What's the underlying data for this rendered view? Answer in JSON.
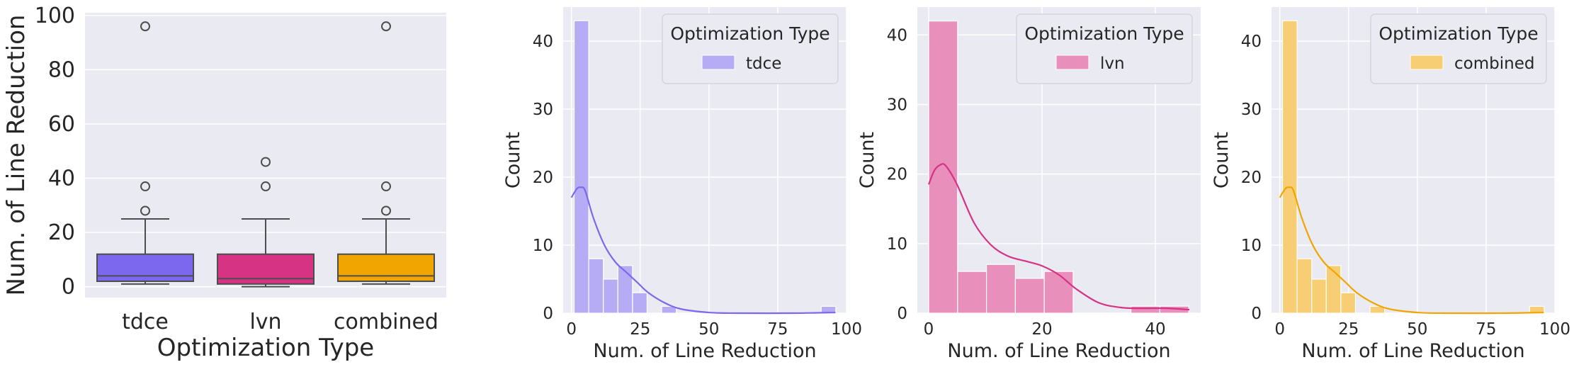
{
  "chart_data": [
    {
      "type": "box",
      "xlabel": "Optimization Type",
      "ylabel": "Num. of Line Reduction",
      "ylim": [
        -4,
        101
      ],
      "yticks": [
        0,
        20,
        40,
        60,
        80,
        100
      ],
      "grid": true,
      "categories": [
        "tdce",
        "lvn",
        "combined"
      ],
      "boxes": [
        {
          "category": "tdce",
          "color": "#7b68ee",
          "whisker_low": 1,
          "q1": 2,
          "median": 4,
          "q3": 12,
          "whisker_high": 25,
          "outliers": [
            28,
            37,
            96
          ]
        },
        {
          "category": "lvn",
          "color": "#d63384",
          "whisker_low": 0,
          "q1": 1,
          "median": 3,
          "q3": 12,
          "whisker_high": 25,
          "outliers": [
            37,
            46
          ]
        },
        {
          "category": "combined",
          "color": "#f0a500",
          "whisker_low": 1,
          "q1": 2,
          "median": 4,
          "q3": 12,
          "whisker_high": 25,
          "outliers": [
            28,
            37,
            96
          ]
        }
      ]
    },
    {
      "type": "histogram",
      "xlabel": "Num. of Line Reduction",
      "ylabel": "Count",
      "xlim": [
        -3,
        100
      ],
      "ylim": [
        0,
        45
      ],
      "xticks": [
        0,
        25,
        50,
        75,
        100
      ],
      "yticks": [
        0,
        10,
        20,
        30,
        40
      ],
      "legend": {
        "title": "Optimization Type",
        "entries": [
          "tdce"
        ],
        "placement": "top-right"
      },
      "color": "#7b68ee",
      "bins": [
        {
          "x0": 1,
          "x1": 6.3,
          "count": 43
        },
        {
          "x0": 6.3,
          "x1": 11.6,
          "count": 8
        },
        {
          "x0": 11.6,
          "x1": 16.9,
          "count": 5
        },
        {
          "x0": 16.9,
          "x1": 22.2,
          "count": 7
        },
        {
          "x0": 22.2,
          "x1": 27.5,
          "count": 3
        },
        {
          "x0": 27.5,
          "x1": 32.8,
          "count": 0
        },
        {
          "x0": 32.8,
          "x1": 38.1,
          "count": 1
        },
        {
          "x0": 90.8,
          "x1": 96.1,
          "count": 1
        }
      ],
      "kde": {
        "x": [
          0,
          2,
          3.5,
          5,
          8,
          12,
          16,
          20,
          24,
          28,
          34,
          40,
          50,
          60,
          80,
          96
        ],
        "y": [
          17,
          18.3,
          18.5,
          18,
          14,
          10,
          7.5,
          6,
          4.5,
          3,
          1.5,
          0.6,
          0.1,
          0,
          0,
          0.1
        ]
      }
    },
    {
      "type": "histogram",
      "xlabel": "Num. of Line Reduction",
      "ylabel": "Count",
      "xlim": [
        -2,
        48
      ],
      "ylim": [
        0,
        44
      ],
      "xticks": [
        0,
        20,
        40
      ],
      "yticks": [
        0,
        10,
        20,
        30,
        40
      ],
      "legend": {
        "title": "Optimization Type",
        "entries": [
          "lvn"
        ],
        "placement": "top-right"
      },
      "color": "#d63384",
      "bins": [
        {
          "x0": 0,
          "x1": 5.1,
          "count": 42
        },
        {
          "x0": 5.1,
          "x1": 10.2,
          "count": 6
        },
        {
          "x0": 10.2,
          "x1": 15.3,
          "count": 7
        },
        {
          "x0": 15.3,
          "x1": 20.4,
          "count": 5
        },
        {
          "x0": 20.4,
          "x1": 25.5,
          "count": 6
        },
        {
          "x0": 35.7,
          "x1": 40.8,
          "count": 1
        },
        {
          "x0": 40.8,
          "x1": 45.9,
          "count": 1
        }
      ],
      "kde": {
        "x": [
          0,
          1,
          2,
          3,
          5,
          8,
          11,
          14,
          17,
          20,
          23,
          26,
          30,
          34,
          38,
          42,
          46
        ],
        "y": [
          18.5,
          20.5,
          21.3,
          21.2,
          18.5,
          13,
          9.8,
          8.2,
          7.5,
          6.8,
          5.5,
          3.5,
          1.5,
          0.8,
          0.7,
          0.7,
          0.5
        ]
      }
    },
    {
      "type": "histogram",
      "xlabel": "Num. of Line Reduction",
      "ylabel": "Count",
      "xlim": [
        -3,
        100
      ],
      "ylim": [
        0,
        45
      ],
      "xticks": [
        0,
        25,
        50,
        75,
        100
      ],
      "yticks": [
        0,
        10,
        20,
        30,
        40
      ],
      "legend": {
        "title": "Optimization Type",
        "entries": [
          "combined"
        ],
        "placement": "top-right"
      },
      "color": "#f0a500",
      "bins": [
        {
          "x0": 1,
          "x1": 6.3,
          "count": 43
        },
        {
          "x0": 6.3,
          "x1": 11.6,
          "count": 8
        },
        {
          "x0": 11.6,
          "x1": 16.9,
          "count": 5
        },
        {
          "x0": 16.9,
          "x1": 22.2,
          "count": 7
        },
        {
          "x0": 22.2,
          "x1": 27.5,
          "count": 3
        },
        {
          "x0": 27.5,
          "x1": 32.8,
          "count": 0
        },
        {
          "x0": 32.8,
          "x1": 38.1,
          "count": 1
        },
        {
          "x0": 90.8,
          "x1": 96.1,
          "count": 1
        }
      ],
      "kde": {
        "x": [
          0,
          2,
          3.5,
          5,
          8,
          12,
          16,
          20,
          24,
          28,
          34,
          40,
          50,
          60,
          80,
          96
        ],
        "y": [
          17,
          18.3,
          18.5,
          18,
          14,
          10,
          7.5,
          6,
          4.5,
          3,
          1.5,
          0.6,
          0.1,
          0,
          0,
          0.1
        ]
      }
    }
  ]
}
